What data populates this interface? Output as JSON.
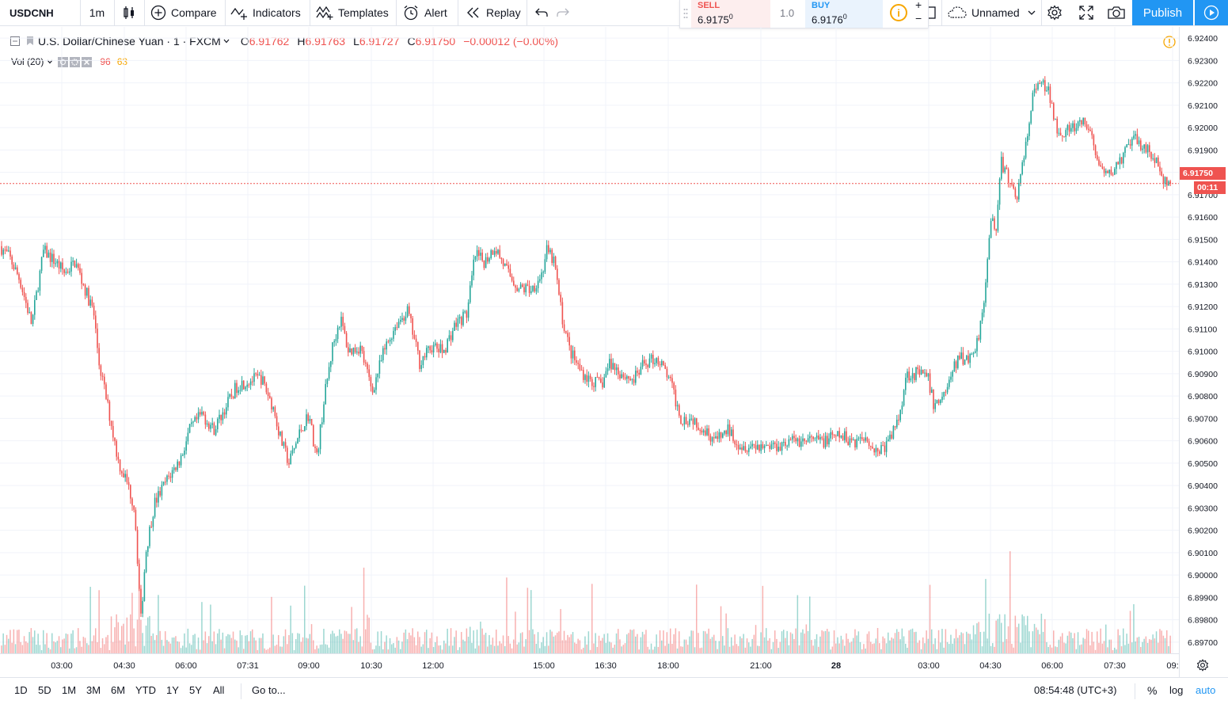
{
  "toolbar": {
    "symbol": "USDCNH",
    "interval": "1m",
    "compare": "Compare",
    "indicators": "Indicators",
    "templates": "Templates",
    "alert": "Alert",
    "replay": "Replay",
    "layout_name": "Unnamed",
    "publish": "Publish"
  },
  "trade": {
    "sell_label": "SELL",
    "sell_price": "6.9175",
    "sell_sup": "0",
    "qty": "1.0",
    "buy_label": "BUY",
    "buy_price": "6.9176",
    "buy_sup": "0",
    "plus": "+",
    "minus": "−"
  },
  "legend": {
    "title": "U.S. Dollar/Chinese Yuan · 1 · FXCM",
    "o_label": "O",
    "o": "6.91762",
    "h_label": "H",
    "h": "6.91763",
    "l_label": "L",
    "l": "6.91727",
    "c_label": "C",
    "c": "6.91750",
    "change": "−0.00012 (−0.00%)",
    "vol_label": "Vol (20)",
    "vol_a": "96",
    "vol_b": "63"
  },
  "price_axis": {
    "ticks": [
      "6.92400",
      "6.92300",
      "6.92200",
      "6.92100",
      "6.92000",
      "6.91900",
      "6.91800",
      "6.91700",
      "6.91600",
      "6.91500",
      "6.91400",
      "6.91300",
      "6.91200",
      "6.91100",
      "6.91000",
      "6.90900",
      "6.90800",
      "6.90700",
      "6.90600",
      "6.90500",
      "6.90400",
      "6.90300",
      "6.90200",
      "6.90100",
      "6.90000",
      "6.89900",
      "6.89800",
      "6.89700"
    ],
    "last_price": "6.91750",
    "countdown": "00:11"
  },
  "time_axis": {
    "ticks": [
      "03:00",
      "04:30",
      "06:00",
      "07:31",
      "09:00",
      "10:30",
      "12:00",
      "15:00",
      "16:30",
      "18:00",
      "21:00",
      "28",
      "03:00",
      "04:30",
      "06:00",
      "07:30",
      "09:"
    ]
  },
  "bottom": {
    "ranges": [
      "1D",
      "5D",
      "1M",
      "3M",
      "6M",
      "YTD",
      "1Y",
      "5Y",
      "All"
    ],
    "goto": "Go to...",
    "clock": "08:54:48 (UTC+3)",
    "percent": "%",
    "log": "log",
    "auto": "auto"
  },
  "colors": {
    "up": "#26a69a",
    "down": "#ef5350",
    "accent": "#2196f3"
  },
  "chart_data": {
    "type": "candlestick",
    "price_range": [
      6.8965,
      6.9245
    ],
    "anchors_price": [
      [
        0,
        6.9147
      ],
      [
        12,
        6.9142
      ],
      [
        25,
        6.9132
      ],
      [
        40,
        6.9112
      ],
      [
        55,
        6.9145
      ],
      [
        70,
        6.914
      ],
      [
        82,
        6.9135
      ],
      [
        95,
        6.914
      ],
      [
        108,
        6.9127
      ],
      [
        118,
        6.9118
      ],
      [
        125,
        6.9095
      ],
      [
        138,
        6.9072
      ],
      [
        150,
        6.905
      ],
      [
        160,
        6.9042
      ],
      [
        170,
        6.903
      ],
      [
        178,
        6.898
      ],
      [
        184,
        6.901
      ],
      [
        195,
        6.9032
      ],
      [
        210,
        6.9042
      ],
      [
        228,
        6.9052
      ],
      [
        240,
        6.9065
      ],
      [
        255,
        6.9072
      ],
      [
        270,
        6.9065
      ],
      [
        285,
        6.9075
      ],
      [
        300,
        6.9085
      ],
      [
        315,
        6.9087
      ],
      [
        330,
        6.9088
      ],
      [
        345,
        6.9075
      ],
      [
        355,
        6.906
      ],
      [
        365,
        6.905
      ],
      [
        380,
        6.9065
      ],
      [
        390,
        6.9072
      ],
      [
        400,
        6.9052
      ],
      [
        410,
        6.908
      ],
      [
        420,
        6.9102
      ],
      [
        430,
        6.9115
      ],
      [
        440,
        6.91
      ],
      [
        455,
        6.9102
      ],
      [
        470,
        6.9082
      ],
      [
        485,
        6.91
      ],
      [
        500,
        6.9112
      ],
      [
        515,
        6.9118
      ],
      [
        530,
        6.9095
      ],
      [
        545,
        6.9102
      ],
      [
        560,
        6.91
      ],
      [
        575,
        6.9112
      ],
      [
        590,
        6.9117
      ],
      [
        600,
        6.9143
      ],
      [
        612,
        6.914
      ],
      [
        625,
        6.9147
      ],
      [
        640,
        6.9136
      ],
      [
        655,
        6.9128
      ],
      [
        672,
        6.9128
      ],
      [
        685,
        6.9135
      ],
      [
        690,
        6.9145
      ],
      [
        700,
        6.914
      ],
      [
        710,
        6.9115
      ],
      [
        720,
        6.91
      ],
      [
        732,
        6.9092
      ],
      [
        745,
        6.9087
      ],
      [
        760,
        6.9085
      ],
      [
        770,
        6.9095
      ],
      [
        785,
        6.909
      ],
      [
        800,
        6.9087
      ],
      [
        815,
        6.9095
      ],
      [
        830,
        6.9097
      ],
      [
        845,
        6.9088
      ],
      [
        860,
        6.907
      ],
      [
        875,
        6.907
      ],
      [
        890,
        6.9065
      ],
      [
        905,
        6.906
      ],
      [
        920,
        6.9065
      ],
      [
        935,
        6.9058
      ],
      [
        955,
        6.9058
      ],
      [
        980,
        6.9058
      ],
      [
        1000,
        6.906
      ],
      [
        1020,
        6.906
      ],
      [
        1040,
        6.906
      ],
      [
        1060,
        6.9062
      ],
      [
        1080,
        6.906
      ],
      [
        1095,
        6.9062
      ],
      [
        1105,
        6.9055
      ],
      [
        1120,
        6.9058
      ],
      [
        1135,
        6.907
      ],
      [
        1145,
        6.909
      ],
      [
        1160,
        6.909
      ],
      [
        1172,
        6.9088
      ],
      [
        1180,
        6.9075
      ],
      [
        1195,
        6.9083
      ],
      [
        1210,
        6.9097
      ],
      [
        1225,
        6.9097
      ],
      [
        1235,
        6.9105
      ],
      [
        1245,
        6.913
      ],
      [
        1252,
        6.916
      ],
      [
        1258,
        6.9155
      ],
      [
        1265,
        6.9185
      ],
      [
        1275,
        6.9175
      ],
      [
        1285,
        6.917
      ],
      [
        1295,
        6.919
      ],
      [
        1305,
        6.9215
      ],
      [
        1315,
        6.922
      ],
      [
        1325,
        6.9215
      ],
      [
        1335,
        6.92
      ],
      [
        1345,
        6.9198
      ],
      [
        1360,
        6.92
      ],
      [
        1370,
        6.9202
      ],
      [
        1380,
        6.9195
      ],
      [
        1390,
        6.918
      ],
      [
        1400,
        6.9178
      ],
      [
        1410,
        6.9183
      ],
      [
        1420,
        6.9188
      ],
      [
        1430,
        6.9195
      ],
      [
        1445,
        6.9192
      ],
      [
        1460,
        6.9185
      ],
      [
        1470,
        6.9175
      ],
      [
        1480,
        6.9175
      ]
    ]
  }
}
